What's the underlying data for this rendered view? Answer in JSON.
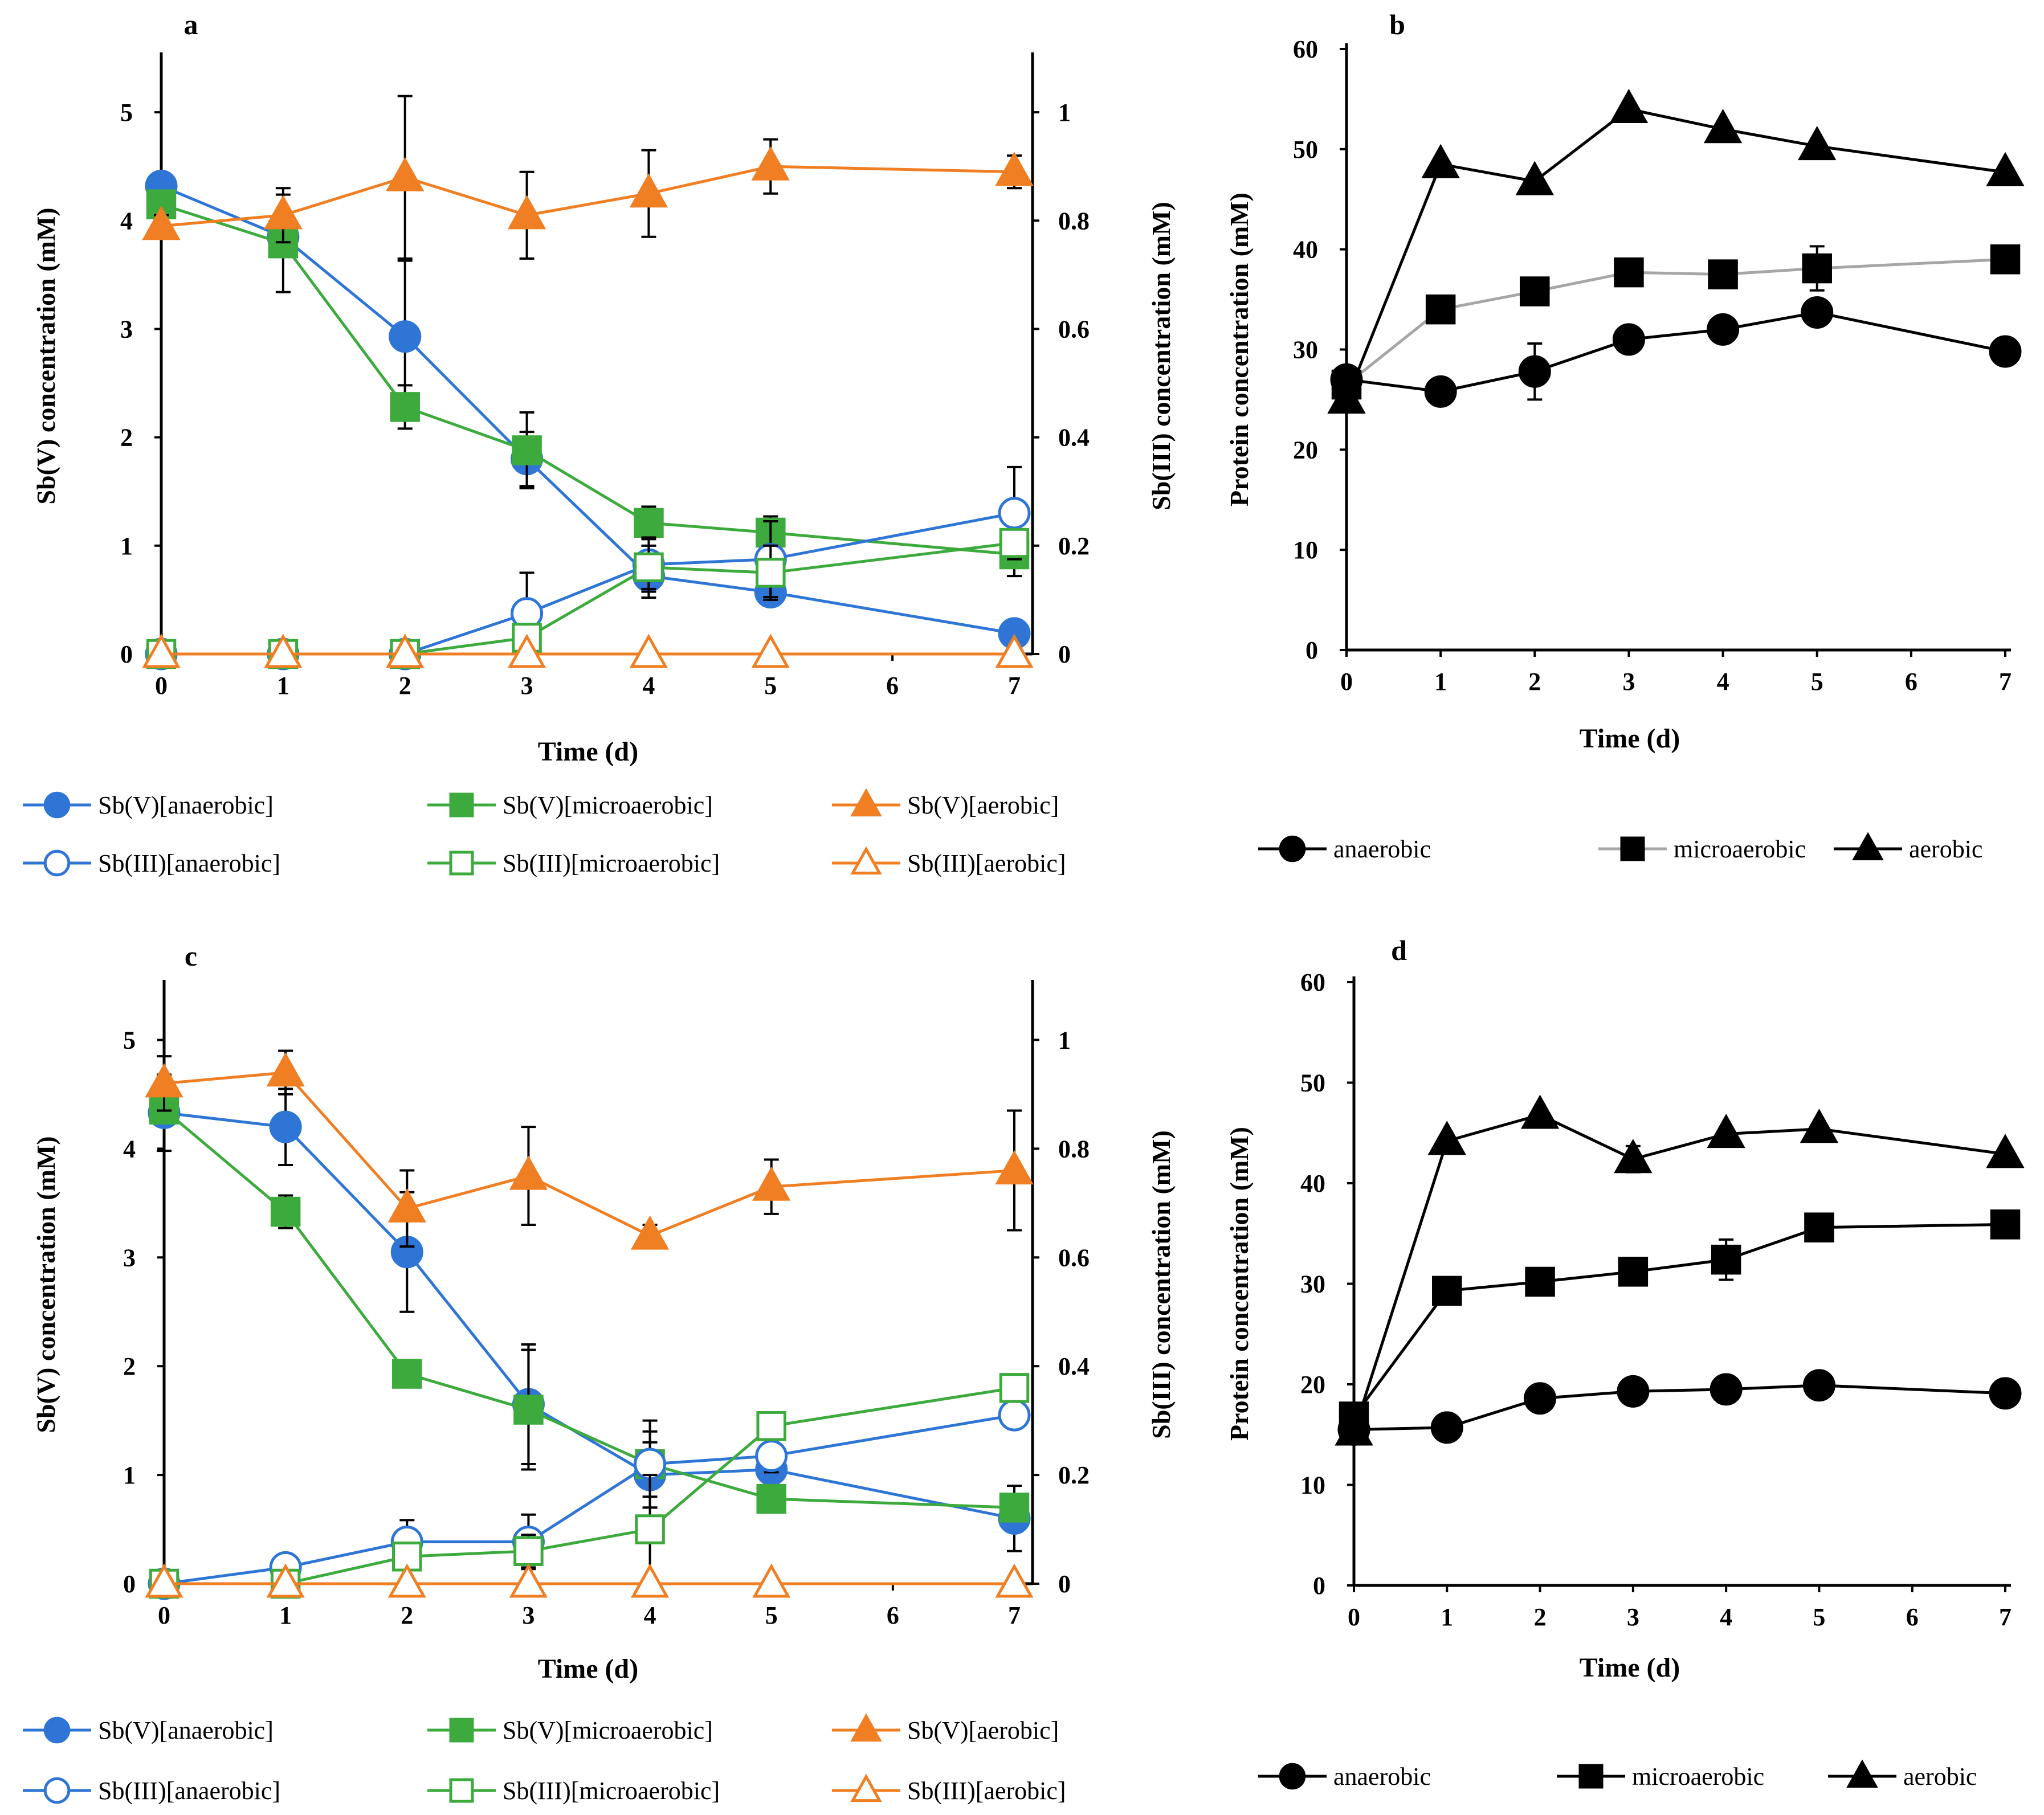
{
  "colors": {
    "blue": "#2E75D6",
    "green": "#3DAA3D",
    "orange": "#F07F24",
    "black": "#000000",
    "gray": "#A6A6A6"
  },
  "chart_data": [
    {
      "panel": "a",
      "type": "line",
      "dual_axis": true,
      "xlabel": "Time (d)",
      "ylabel": "Sb(V) concentration (mM)",
      "y2label": "Sb(III) concentration (mM)",
      "xlim": [
        0,
        7
      ],
      "xticks": [
        "0",
        "1",
        "2",
        "3",
        "4",
        "5",
        "6",
        "7"
      ],
      "ylim": [
        0,
        5.5
      ],
      "yticks": [
        "0",
        "1",
        "2",
        "3",
        "4",
        "5"
      ],
      "y2lim": [
        0,
        1.1
      ],
      "y2ticks": [
        "0",
        "0.2",
        "0.4",
        "0.6",
        "0.8",
        "1"
      ],
      "series": [
        {
          "name": "Sb(V)[anaerobic]",
          "color": "blue",
          "marker": "circle",
          "filled": true,
          "axis": "left",
          "x": [
            0,
            1,
            2,
            3,
            4,
            5,
            7
          ],
          "y": [
            4.32,
            3.85,
            2.93,
            1.8,
            0.72,
            0.57,
            0.19
          ],
          "err": [
            0.05,
            0.12,
            0.7,
            0.25,
            0.2,
            0.08,
            0.05
          ]
        },
        {
          "name": "Sb(V)[microaerobic]",
          "color": "green",
          "marker": "square",
          "filled": true,
          "axis": "left",
          "x": [
            0,
            1,
            2,
            3,
            4,
            5,
            7
          ],
          "y": [
            4.15,
            3.79,
            2.28,
            1.88,
            1.21,
            1.12,
            0.92
          ],
          "err": [
            0.1,
            0.45,
            0.2,
            0.35,
            0.15,
            0.15,
            0.2
          ]
        },
        {
          "name": "Sb(V)[aerobic]",
          "color": "orange",
          "marker": "triangle",
          "filled": true,
          "axis": "right",
          "x": [
            0,
            1,
            2,
            3,
            4,
            5,
            7
          ],
          "y": [
            0.79,
            0.81,
            0.88,
            0.81,
            0.85,
            0.9,
            0.89
          ],
          "err": [
            0.02,
            0.05,
            0.15,
            0.08,
            0.08,
            0.05,
            0.03
          ]
        },
        {
          "name": "Sb(III)[anaerobic]",
          "color": "blue",
          "marker": "circle",
          "filled": false,
          "axis": "right",
          "x": [
            0,
            1,
            2,
            3,
            4,
            5,
            7
          ],
          "y": [
            0,
            0,
            0,
            0.075,
            0.165,
            0.175,
            0.26
          ],
          "err": [
            0,
            0,
            0,
            0.075,
            0.05,
            0.07,
            0.085
          ]
        },
        {
          "name": "Sb(III)[microaerobic]",
          "color": "green",
          "marker": "square",
          "filled": false,
          "axis": "right",
          "x": [
            0,
            1,
            2,
            3,
            4,
            5,
            7
          ],
          "y": [
            0,
            0,
            0,
            0.03,
            0.16,
            0.15,
            0.205
          ],
          "err": [
            0,
            0,
            0,
            0,
            0.04,
            0.05,
            0.02
          ]
        },
        {
          "name": "Sb(III)[aerobic]",
          "color": "orange",
          "marker": "triangle",
          "filled": false,
          "axis": "right",
          "x": [
            0,
            1,
            2,
            3,
            4,
            5,
            7
          ],
          "y": [
            0,
            0,
            0,
            0,
            0,
            0,
            0
          ],
          "err": [
            0,
            0,
            0,
            0,
            0,
            0,
            0
          ]
        }
      ]
    },
    {
      "panel": "b",
      "type": "line",
      "xlabel": "Time (d)",
      "ylabel": "Protein concentration (mM)",
      "xlim": [
        0,
        7
      ],
      "xticks": [
        "0",
        "1",
        "2",
        "3",
        "4",
        "5",
        "6",
        "7"
      ],
      "ylim": [
        0,
        60
      ],
      "yticks": [
        "0",
        "10",
        "20",
        "30",
        "40",
        "50",
        "60"
      ],
      "series": [
        {
          "name": "anaerobic",
          "color": "black",
          "marker": "circle",
          "filled": true,
          "x": [
            0,
            1,
            2,
            3,
            4,
            5,
            7
          ],
          "y": [
            27,
            25.8,
            27.8,
            31,
            32,
            33.7,
            29.8
          ],
          "err": [
            0.5,
            0.5,
            2.8,
            0.5,
            0.5,
            0.5,
            1
          ]
        },
        {
          "name": "microaerobic",
          "color": "gray",
          "marker": "square",
          "filled": true,
          "x": [
            0,
            1,
            2,
            3,
            4,
            5,
            7
          ],
          "y": [
            26.5,
            34,
            35.8,
            37.7,
            37.5,
            38.1,
            39
          ],
          "err": [
            0.5,
            0.5,
            0.5,
            0.5,
            0.5,
            2.2,
            0.5
          ]
        },
        {
          "name": "aerobic",
          "color": "black",
          "marker": "triangle",
          "filled": true,
          "x": [
            0,
            1,
            2,
            3,
            4,
            5,
            7
          ],
          "y": [
            25,
            48.5,
            46.8,
            54,
            52,
            50.3,
            47.7
          ],
          "err": [
            0.3,
            0.3,
            0.3,
            0.3,
            0.3,
            0.3,
            0.3
          ]
        }
      ]
    },
    {
      "panel": "c",
      "type": "line",
      "dual_axis": true,
      "xlabel": "Time (d)",
      "ylabel": "Sb(V) concentration (mM)",
      "y2label": "Sb(III) concentration (mM)",
      "xlim": [
        0,
        7
      ],
      "xticks": [
        "0",
        "1",
        "2",
        "3",
        "4",
        "5",
        "6",
        "7"
      ],
      "ylim": [
        0,
        5.5
      ],
      "yticks": [
        "0",
        "1",
        "2",
        "3",
        "4",
        "5"
      ],
      "y2lim": [
        0,
        1.1
      ],
      "y2ticks": [
        "0",
        "0.2",
        "0.4",
        "0.6",
        "0.8",
        "1"
      ],
      "series": [
        {
          "name": "Sb(V)[anaerobic]",
          "color": "blue",
          "marker": "circle",
          "filled": true,
          "axis": "left",
          "x": [
            0,
            1,
            2,
            3,
            4,
            5,
            7
          ],
          "y": [
            4.33,
            4.2,
            3.05,
            1.65,
            1.0,
            1.05,
            0.6
          ],
          "err": [
            0.35,
            0.35,
            0.55,
            0.55,
            0.3,
            0.2,
            0.3
          ]
        },
        {
          "name": "Sb(V)[microaerobic]",
          "color": "green",
          "marker": "square",
          "filled": true,
          "axis": "left",
          "x": [
            0,
            1,
            2,
            3,
            4,
            5,
            7
          ],
          "y": [
            4.36,
            3.42,
            1.93,
            1.6,
            1.1,
            0.78,
            0.7
          ],
          "err": [
            0.1,
            0.15,
            0.1,
            0.55,
            0.3,
            0.1,
            0.1
          ]
        },
        {
          "name": "Sb(V)[aerobic]",
          "color": "orange",
          "marker": "triangle",
          "filled": true,
          "axis": "right",
          "x": [
            0,
            1,
            2,
            3,
            4,
            5,
            7
          ],
          "y": [
            0.92,
            0.94,
            0.69,
            0.75,
            0.64,
            0.73,
            0.76
          ],
          "err": [
            0.05,
            0.04,
            0.07,
            0.09,
            0.02,
            0.05,
            0.11
          ]
        },
        {
          "name": "Sb(III)[anaerobic]",
          "color": "blue",
          "marker": "circle",
          "filled": false,
          "axis": "right",
          "x": [
            0,
            1,
            2,
            3,
            4,
            5,
            7
          ],
          "y": [
            0,
            0.03,
            0.077,
            0.077,
            0.22,
            0.235,
            0.31
          ],
          "err": [
            0,
            0,
            0.04,
            0.05,
            0.08,
            0.03,
            0.02
          ]
        },
        {
          "name": "Sb(III)[microaerobic]",
          "color": "green",
          "marker": "square",
          "filled": false,
          "axis": "right",
          "x": [
            0,
            1,
            2,
            3,
            4,
            5,
            7
          ],
          "y": [
            0,
            0,
            0.05,
            0.06,
            0.1,
            0.29,
            0.36
          ],
          "err": [
            0,
            0,
            0.02,
            0.03,
            0.1,
            0.02,
            0.02
          ]
        },
        {
          "name": "Sb(III)[aerobic]",
          "color": "orange",
          "marker": "triangle",
          "filled": false,
          "axis": "right",
          "x": [
            0,
            1,
            2,
            3,
            4,
            5,
            7
          ],
          "y": [
            0,
            0,
            0,
            0,
            0,
            0,
            0
          ],
          "err": [
            0,
            0,
            0,
            0,
            0,
            0,
            0
          ]
        }
      ]
    },
    {
      "panel": "d",
      "type": "line",
      "xlabel": "Time (d)",
      "ylabel": "Protein concentration (mM)",
      "xlim": [
        0,
        7
      ],
      "xticks": [
        "0",
        "1",
        "2",
        "3",
        "4",
        "5",
        "6",
        "7"
      ],
      "ylim": [
        0,
        60
      ],
      "yticks": [
        "0",
        "10",
        "20",
        "30",
        "40",
        "50",
        "60"
      ],
      "series": [
        {
          "name": "anaerobic",
          "color": "black",
          "marker": "circle",
          "filled": true,
          "x": [
            0,
            1,
            2,
            3,
            4,
            5,
            7
          ],
          "y": [
            15.5,
            15.7,
            18.6,
            19.3,
            19.5,
            19.9,
            19.1
          ],
          "err": [
            0.3,
            0.3,
            0.4,
            0.4,
            0.4,
            0.4,
            0.8
          ]
        },
        {
          "name": "microaerobic",
          "color": "black",
          "marker": "square",
          "filled": true,
          "x": [
            0,
            1,
            2,
            3,
            4,
            5,
            7
          ],
          "y": [
            16.8,
            29.3,
            30.2,
            31.2,
            32.4,
            35.6,
            35.9
          ],
          "err": [
            0.4,
            0.5,
            0.5,
            0.5,
            2,
            0.5,
            0.4
          ]
        },
        {
          "name": "aerobic",
          "color": "black",
          "marker": "triangle",
          "filled": true,
          "x": [
            0,
            1,
            2,
            3,
            4,
            5,
            7
          ],
          "y": [
            15.3,
            44.2,
            46.8,
            42.4,
            44.9,
            45.4,
            42.9
          ],
          "err": [
            0.3,
            0.4,
            0.5,
            1.3,
            0.4,
            0.4,
            0.4
          ]
        }
      ]
    }
  ]
}
